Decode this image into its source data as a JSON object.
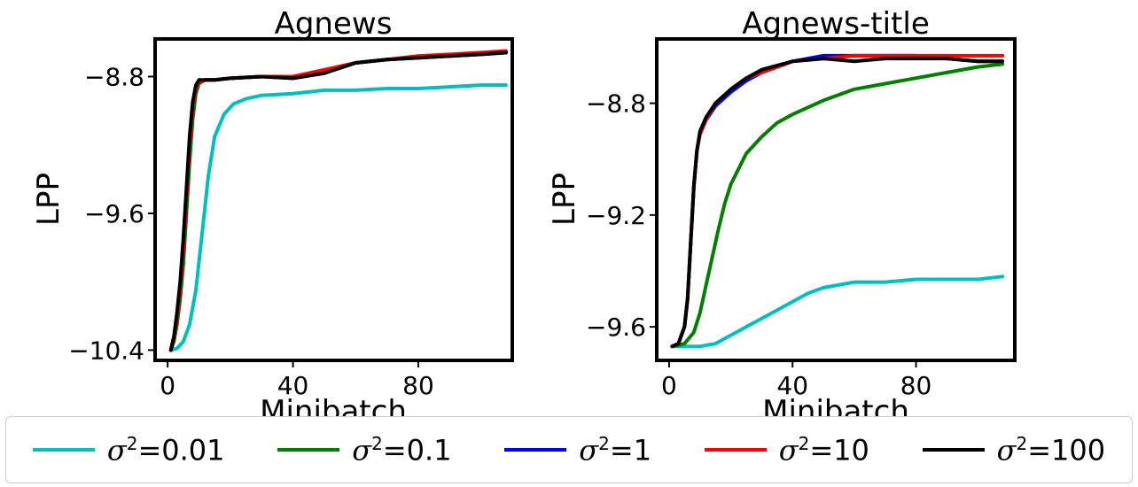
{
  "chart_data": [
    {
      "type": "line",
      "title": "Agnews",
      "xlabel": "Minibatch",
      "ylabel": "LPP",
      "xlim": [
        -4,
        110
      ],
      "ylim": [
        -10.46,
        -8.58
      ],
      "xticks": [
        0,
        40,
        80
      ],
      "yticks": [
        -8.8,
        -9.6,
        -10.4
      ],
      "ytick_labels": [
        "−8.8",
        "−9.6",
        "−10.4"
      ],
      "series": [
        {
          "name": "σ²=0.01",
          "color": "#00bfbf",
          "x": [
            1,
            3,
            5,
            7,
            9,
            11,
            13,
            15,
            18,
            21,
            25,
            30,
            40,
            50,
            60,
            70,
            80,
            90,
            100,
            108
          ],
          "y": [
            -10.4,
            -10.39,
            -10.35,
            -10.25,
            -10.05,
            -9.72,
            -9.38,
            -9.15,
            -9.02,
            -8.96,
            -8.93,
            -8.91,
            -8.9,
            -8.88,
            -8.88,
            -8.87,
            -8.87,
            -8.86,
            -8.85,
            -8.85
          ]
        },
        {
          "name": "σ²=0.1",
          "color": "#008000",
          "x": [
            1,
            2,
            3,
            4,
            5,
            6,
            7,
            8,
            9,
            10,
            12,
            15,
            20,
            30,
            40,
            50,
            60,
            70,
            80,
            90,
            100,
            108
          ],
          "y": [
            -10.4,
            -10.35,
            -10.25,
            -10.1,
            -9.9,
            -9.6,
            -9.3,
            -9.05,
            -8.9,
            -8.84,
            -8.82,
            -8.82,
            -8.81,
            -8.8,
            -8.8,
            -8.77,
            -8.72,
            -8.7,
            -8.69,
            -8.68,
            -8.67,
            -8.66
          ]
        },
        {
          "name": "σ²=1",
          "color": "#0000ff",
          "x": [
            1,
            2,
            3,
            4,
            5,
            6,
            7,
            8,
            9,
            10,
            12,
            15,
            20,
            30,
            40,
            50,
            60,
            70,
            80,
            90,
            100,
            108
          ],
          "y": [
            -10.4,
            -10.33,
            -10.22,
            -10.05,
            -9.82,
            -9.5,
            -9.2,
            -8.98,
            -8.87,
            -8.83,
            -8.82,
            -8.82,
            -8.81,
            -8.8,
            -8.81,
            -8.78,
            -8.72,
            -8.7,
            -8.69,
            -8.68,
            -8.67,
            -8.66
          ]
        },
        {
          "name": "σ²=10",
          "color": "#ff0000",
          "x": [
            1,
            2,
            3,
            4,
            5,
            6,
            7,
            8,
            9,
            10,
            12,
            15,
            20,
            30,
            40,
            50,
            60,
            70,
            80,
            90,
            100,
            108
          ],
          "y": [
            -10.4,
            -10.33,
            -10.22,
            -10.05,
            -9.82,
            -9.5,
            -9.2,
            -8.98,
            -8.87,
            -8.83,
            -8.82,
            -8.82,
            -8.81,
            -8.8,
            -8.8,
            -8.76,
            -8.72,
            -8.7,
            -8.68,
            -8.67,
            -8.66,
            -8.65
          ]
        },
        {
          "name": "σ²=100",
          "color": "#000000",
          "x": [
            1,
            2,
            3,
            4,
            5,
            6,
            7,
            8,
            9,
            10,
            12,
            15,
            20,
            30,
            40,
            50,
            60,
            70,
            80,
            90,
            100,
            108
          ],
          "y": [
            -10.4,
            -10.32,
            -10.18,
            -10.0,
            -9.75,
            -9.45,
            -9.15,
            -8.95,
            -8.85,
            -8.82,
            -8.82,
            -8.82,
            -8.81,
            -8.8,
            -8.81,
            -8.78,
            -8.72,
            -8.7,
            -8.69,
            -8.68,
            -8.67,
            -8.66
          ]
        }
      ]
    },
    {
      "type": "line",
      "title": "Agnews-title",
      "xlabel": "Minibatch",
      "ylabel": "LPP",
      "xlim": [
        -4,
        112
      ],
      "ylim": [
        -9.72,
        -8.57
      ],
      "xticks": [
        0,
        40,
        80
      ],
      "yticks": [
        -8.8,
        -9.2,
        -9.6
      ],
      "ytick_labels": [
        "−8.8",
        "−9.2",
        "−9.6"
      ],
      "series": [
        {
          "name": "σ²=0.01",
          "color": "#00bfbf",
          "x": [
            1,
            5,
            10,
            15,
            20,
            25,
            30,
            35,
            40,
            45,
            50,
            60,
            70,
            80,
            90,
            100,
            108
          ],
          "y": [
            -9.67,
            -9.67,
            -9.67,
            -9.66,
            -9.63,
            -9.6,
            -9.57,
            -9.54,
            -9.51,
            -9.48,
            -9.46,
            -9.44,
            -9.44,
            -9.43,
            -9.43,
            -9.43,
            -9.42
          ]
        },
        {
          "name": "σ²=0.1",
          "color": "#008000",
          "x": [
            1,
            5,
            8,
            10,
            12,
            14,
            16,
            18,
            20,
            25,
            30,
            35,
            40,
            50,
            60,
            70,
            80,
            90,
            100,
            108
          ],
          "y": [
            -9.67,
            -9.66,
            -9.62,
            -9.55,
            -9.45,
            -9.35,
            -9.25,
            -9.16,
            -9.09,
            -8.98,
            -8.92,
            -8.87,
            -8.84,
            -8.79,
            -8.75,
            -8.73,
            -8.71,
            -8.69,
            -8.67,
            -8.66
          ]
        },
        {
          "name": "σ²=1",
          "color": "#0000ff",
          "x": [
            1,
            3,
            5,
            6,
            7,
            8,
            9,
            10,
            12,
            15,
            20,
            25,
            30,
            40,
            50,
            60,
            70,
            80,
            90,
            100,
            108
          ],
          "y": [
            -9.67,
            -9.66,
            -9.6,
            -9.5,
            -9.3,
            -9.1,
            -8.97,
            -8.91,
            -8.86,
            -8.81,
            -8.76,
            -8.72,
            -8.69,
            -8.65,
            -8.63,
            -8.63,
            -8.63,
            -8.63,
            -8.64,
            -8.65,
            -8.65
          ]
        },
        {
          "name": "σ²=10",
          "color": "#ff0000",
          "x": [
            1,
            3,
            5,
            6,
            7,
            8,
            9,
            10,
            12,
            15,
            20,
            25,
            30,
            40,
            50,
            60,
            70,
            80,
            90,
            100,
            108
          ],
          "y": [
            -9.67,
            -9.66,
            -9.6,
            -9.5,
            -9.3,
            -9.1,
            -8.97,
            -8.91,
            -8.86,
            -8.8,
            -8.75,
            -8.71,
            -8.69,
            -8.65,
            -8.64,
            -8.63,
            -8.63,
            -8.63,
            -8.63,
            -8.63,
            -8.63
          ]
        },
        {
          "name": "σ²=100",
          "color": "#000000",
          "x": [
            1,
            3,
            5,
            6,
            7,
            8,
            9,
            10,
            12,
            15,
            20,
            25,
            30,
            40,
            50,
            60,
            70,
            80,
            90,
            100,
            108
          ],
          "y": [
            -9.67,
            -9.66,
            -9.6,
            -9.5,
            -9.3,
            -9.1,
            -8.97,
            -8.9,
            -8.85,
            -8.8,
            -8.75,
            -8.71,
            -8.68,
            -8.65,
            -8.64,
            -8.65,
            -8.64,
            -8.64,
            -8.64,
            -8.65,
            -8.65
          ]
        }
      ]
    }
  ],
  "legend": {
    "placement": "bottom-center",
    "items": [
      {
        "symbol": "σ",
        "exp": "2",
        "value": "=0.01",
        "color": "#00bfbf"
      },
      {
        "symbol": "σ",
        "exp": "2",
        "value": "=0.1",
        "color": "#008000"
      },
      {
        "symbol": "σ",
        "exp": "2",
        "value": "=1",
        "color": "#0000ff"
      },
      {
        "symbol": "σ",
        "exp": "2",
        "value": "=10",
        "color": "#ff0000"
      },
      {
        "symbol": "σ",
        "exp": "2",
        "value": "=100",
        "color": "#000000"
      }
    ]
  }
}
